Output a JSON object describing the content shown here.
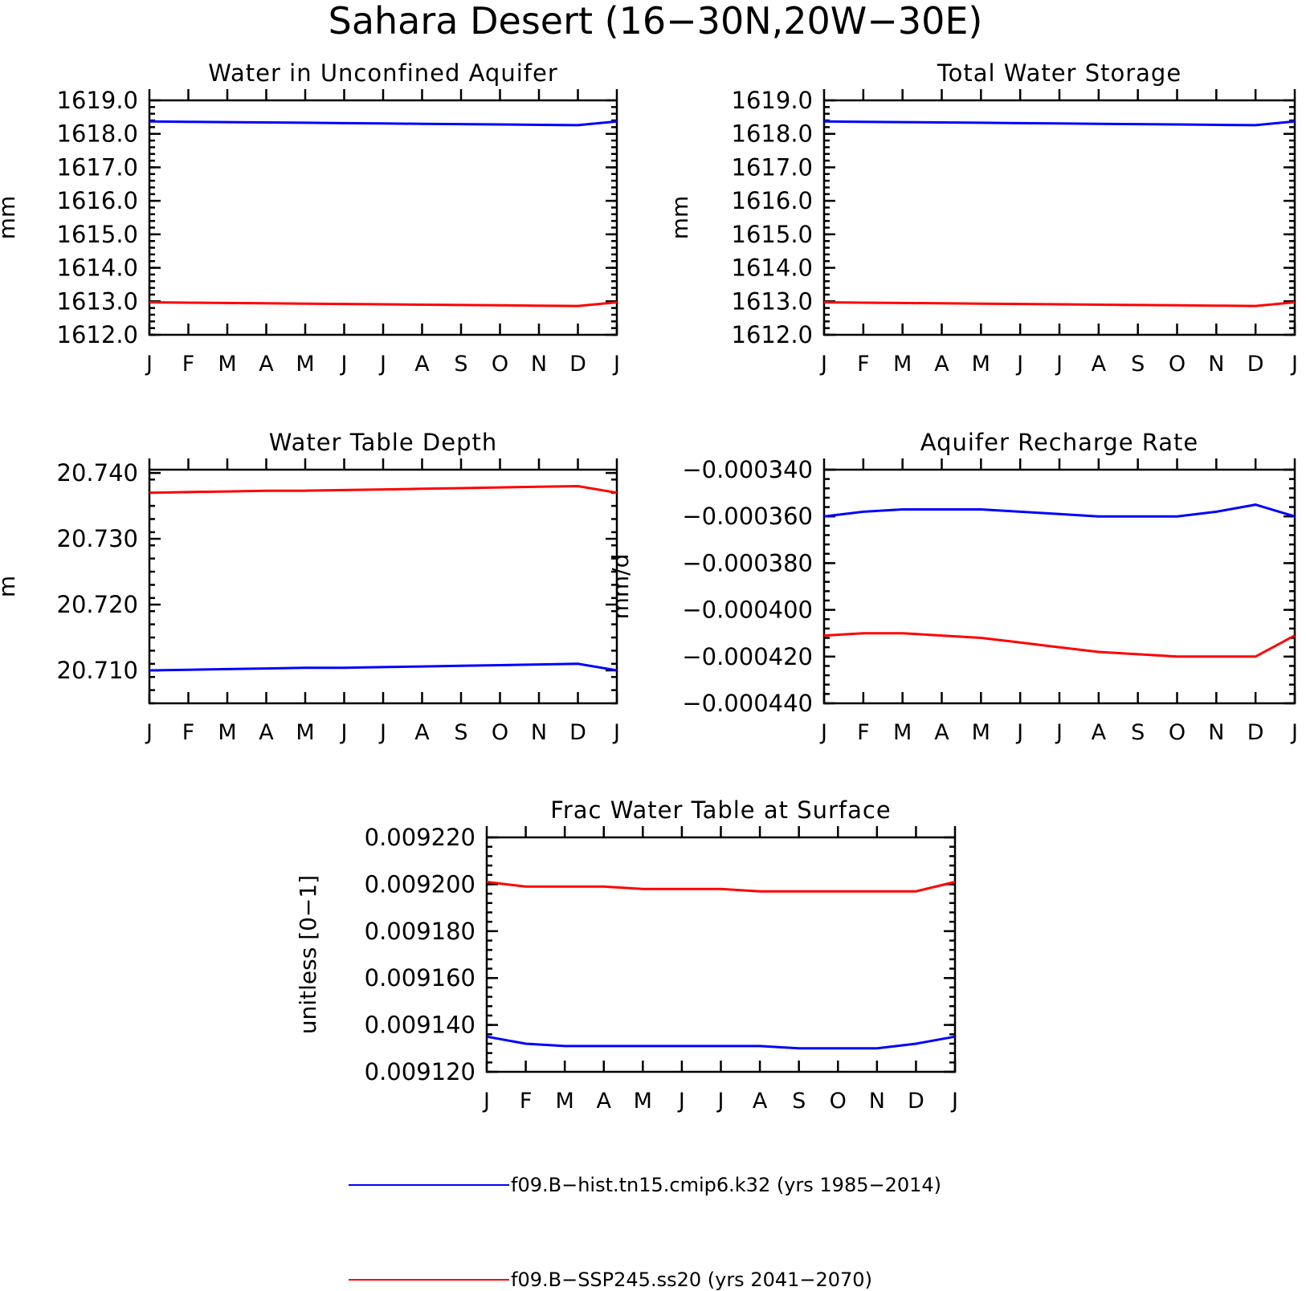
{
  "figure_title": "Sahara Desert (16−30N,20W−30E)",
  "colors": {
    "hist": "#0000ff",
    "ssp": "#ff0000"
  },
  "legend": [
    {
      "key": "hist",
      "label": "f09.B−hist.tn15.cmip6.k32 (yrs 1985−2014)"
    },
    {
      "key": "ssp",
      "label": "f09.B−SSP245.ss20 (yrs 2041−2070)"
    }
  ],
  "chart_data": [
    {
      "type": "line",
      "title": "Water in Unconfined Aquifer",
      "ylabel": "mm",
      "x": [
        "J",
        "F",
        "M",
        "A",
        "M",
        "J",
        "J",
        "A",
        "S",
        "O",
        "N",
        "D",
        "J"
      ],
      "ylim": [
        1612.0,
        1619.0
      ],
      "yticks": [
        "1619.0",
        "1618.0",
        "1617.0",
        "1616.0",
        "1615.0",
        "1614.0",
        "1613.0",
        "1612.0"
      ],
      "series": [
        {
          "key": "hist",
          "values": [
            1618.37,
            1618.36,
            1618.35,
            1618.34,
            1618.33,
            1618.32,
            1618.31,
            1618.3,
            1618.29,
            1618.28,
            1618.27,
            1618.26,
            1618.37
          ]
        },
        {
          "key": "ssp",
          "values": [
            1612.97,
            1612.96,
            1612.95,
            1612.94,
            1612.93,
            1612.92,
            1612.91,
            1612.9,
            1612.89,
            1612.88,
            1612.87,
            1612.86,
            1612.97
          ]
        }
      ]
    },
    {
      "type": "line",
      "title": "Total Water Storage",
      "ylabel": "mm",
      "x": [
        "J",
        "F",
        "M",
        "A",
        "M",
        "J",
        "J",
        "A",
        "S",
        "O",
        "N",
        "D",
        "J"
      ],
      "ylim": [
        1612.0,
        1619.0
      ],
      "yticks": [
        "1619.0",
        "1618.0",
        "1617.0",
        "1616.0",
        "1615.0",
        "1614.0",
        "1613.0",
        "1612.0"
      ],
      "series": [
        {
          "key": "hist",
          "values": [
            1618.37,
            1618.36,
            1618.35,
            1618.34,
            1618.33,
            1618.32,
            1618.31,
            1618.3,
            1618.29,
            1618.28,
            1618.27,
            1618.26,
            1618.37
          ]
        },
        {
          "key": "ssp",
          "values": [
            1612.97,
            1612.96,
            1612.95,
            1612.94,
            1612.93,
            1612.92,
            1612.91,
            1612.9,
            1612.89,
            1612.88,
            1612.87,
            1612.86,
            1612.97
          ]
        }
      ]
    },
    {
      "type": "line",
      "title": "Water Table Depth",
      "ylabel": "m",
      "x": [
        "J",
        "F",
        "M",
        "A",
        "M",
        "J",
        "J",
        "A",
        "S",
        "O",
        "N",
        "D",
        "J"
      ],
      "ylim": [
        20.705,
        20.7405
      ],
      "yticks": [
        "20.740",
        "20.730",
        "20.720",
        "20.710"
      ],
      "yticks_values": [
        20.74,
        20.73,
        20.72,
        20.71
      ],
      "series": [
        {
          "key": "hist",
          "values": [
            20.71,
            20.7101,
            20.7102,
            20.7103,
            20.7104,
            20.7104,
            20.7105,
            20.7106,
            20.7107,
            20.7108,
            20.7109,
            20.711,
            20.71
          ]
        },
        {
          "key": "ssp",
          "values": [
            20.737,
            20.7371,
            20.7372,
            20.7373,
            20.7373,
            20.7374,
            20.7375,
            20.7376,
            20.7377,
            20.7378,
            20.7379,
            20.738,
            20.737
          ]
        }
      ]
    },
    {
      "type": "line",
      "title": "Aquifer Recharge Rate",
      "ylabel": "mm/d",
      "x": [
        "J",
        "F",
        "M",
        "A",
        "M",
        "J",
        "J",
        "A",
        "S",
        "O",
        "N",
        "D",
        "J"
      ],
      "ylim": [
        -0.00044,
        -0.00034
      ],
      "yticks": [
        "−0.000340",
        "−0.000360",
        "−0.000380",
        "−0.000400",
        "−0.000420",
        "−0.000440"
      ],
      "series": [
        {
          "key": "hist",
          "values": [
            -0.00036,
            -0.000358,
            -0.000357,
            -0.000357,
            -0.000357,
            -0.000358,
            -0.000359,
            -0.00036,
            -0.00036,
            -0.00036,
            -0.000358,
            -0.000355,
            -0.00036
          ]
        },
        {
          "key": "ssp",
          "values": [
            -0.000411,
            -0.00041,
            -0.00041,
            -0.000411,
            -0.000412,
            -0.000414,
            -0.000416,
            -0.000418,
            -0.000419,
            -0.00042,
            -0.00042,
            -0.00042,
            -0.000411
          ]
        }
      ]
    },
    {
      "type": "line",
      "title": "Frac Water Table at Surface",
      "ylabel": "unitless [0−1]",
      "x": [
        "J",
        "F",
        "M",
        "A",
        "M",
        "J",
        "J",
        "A",
        "S",
        "O",
        "N",
        "D",
        "J"
      ],
      "ylim": [
        0.00912,
        0.00922
      ],
      "yticks": [
        "0.009220",
        "0.009200",
        "0.009180",
        "0.009160",
        "0.009140",
        "0.009120"
      ],
      "series": [
        {
          "key": "hist",
          "values": [
            0.009135,
            0.009132,
            0.009131,
            0.009131,
            0.009131,
            0.009131,
            0.009131,
            0.009131,
            0.00913,
            0.00913,
            0.00913,
            0.009132,
            0.009135
          ]
        },
        {
          "key": "ssp",
          "values": [
            0.009201,
            0.009199,
            0.009199,
            0.009199,
            0.009198,
            0.009198,
            0.009198,
            0.009197,
            0.009197,
            0.009197,
            0.009197,
            0.009197,
            0.009201
          ]
        }
      ]
    }
  ]
}
